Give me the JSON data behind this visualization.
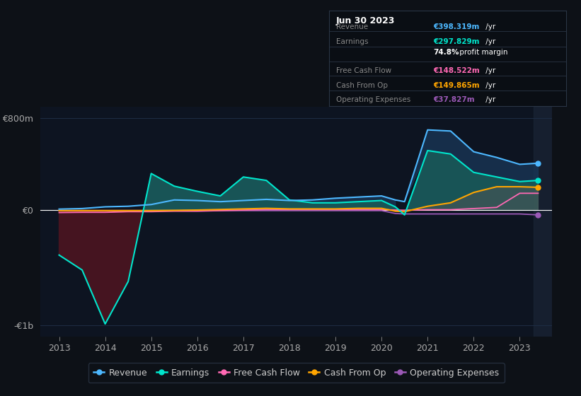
{
  "bg_color": "#0d1117",
  "plot_bg_color": "#0d1421",
  "plot_bg_dark": "#111827",
  "grid_color": "#1e2d45",
  "zero_line_color": "#ffffff",
  "years": [
    2013.0,
    2013.5,
    2014.0,
    2014.5,
    2015.0,
    2015.5,
    2016.0,
    2016.5,
    2017.0,
    2017.5,
    2018.0,
    2018.5,
    2019.0,
    2019.5,
    2020.0,
    2020.3,
    2020.5,
    2021.0,
    2021.5,
    2022.0,
    2022.5,
    2023.0,
    2023.4
  ],
  "revenue": [
    10,
    15,
    30,
    35,
    50,
    90,
    85,
    75,
    85,
    95,
    85,
    90,
    105,
    115,
    125,
    90,
    75,
    700,
    690,
    510,
    460,
    400,
    410
  ],
  "earnings": [
    -390,
    -520,
    -990,
    -620,
    320,
    210,
    165,
    125,
    290,
    260,
    90,
    65,
    65,
    75,
    85,
    30,
    -40,
    520,
    490,
    330,
    290,
    250,
    260
  ],
  "free_cash_flow": [
    -20,
    -18,
    -18,
    -12,
    -12,
    -8,
    -8,
    -3,
    2,
    7,
    7,
    7,
    7,
    7,
    7,
    2,
    0,
    5,
    5,
    15,
    25,
    148,
    148
  ],
  "cash_from_op": [
    -3,
    -3,
    -3,
    -3,
    -3,
    -1,
    2,
    7,
    12,
    17,
    12,
    12,
    12,
    17,
    17,
    -8,
    -12,
    35,
    65,
    155,
    205,
    205,
    200
  ],
  "operating_expenses": [
    -3,
    -3,
    -3,
    -3,
    -3,
    -3,
    -3,
    -3,
    -3,
    -3,
    -3,
    -3,
    -3,
    -3,
    -3,
    -28,
    -32,
    -32,
    -32,
    -32,
    -32,
    -32,
    -40
  ],
  "revenue_color": "#4db8ff",
  "revenue_fill_color": "#1a3a5c",
  "earnings_color": "#00e5cc",
  "earnings_fill_pos_color": "#1a5c5c",
  "earnings_fill_neg_color": "#4a1520",
  "free_cash_flow_color": "#ff69b4",
  "cash_from_op_color": "#ffa500",
  "operating_expenses_color": "#9b59b6",
  "cashop_fill_color": "#555555",
  "ylim_top": 900,
  "ylim_bottom": -1100,
  "y_ticks_labels": [
    "€800m",
    "€0",
    "-€1b"
  ],
  "y_ticks_vals": [
    800,
    0,
    -1000
  ],
  "x_ticks": [
    2013,
    2014,
    2015,
    2016,
    2017,
    2018,
    2019,
    2020,
    2021,
    2022,
    2023
  ],
  "xlim_left": 2012.6,
  "xlim_right": 2023.7,
  "tooltip_x": 2023.3,
  "tooltip_date": "Jun 30 2023",
  "tooltip_revenue": "€398.319m",
  "tooltip_earnings": "€297.829m",
  "tooltip_margin": "74.8%",
  "tooltip_fcf": "€148.522m",
  "tooltip_cashop": "€149.865m",
  "tooltip_opex": "€37.827m",
  "legend_items": [
    "Revenue",
    "Earnings",
    "Free Cash Flow",
    "Cash From Op",
    "Operating Expenses"
  ]
}
